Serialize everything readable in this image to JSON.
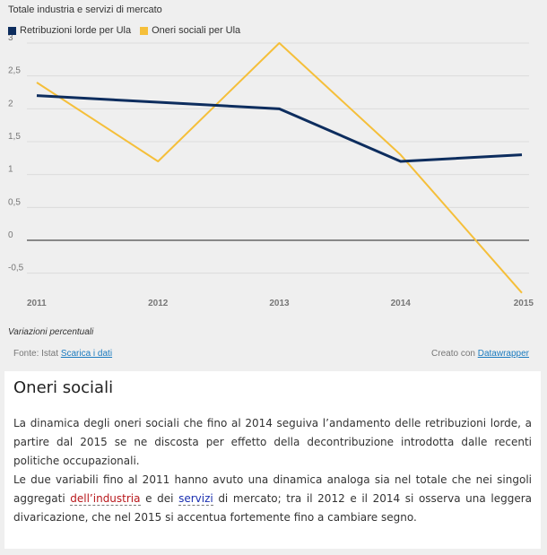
{
  "chart_data": {
    "type": "line",
    "title": "Totale industria e servizi di mercato",
    "categories": [
      "2011",
      "2012",
      "2013",
      "2014",
      "2015"
    ],
    "series": [
      {
        "name": "Retribuzioni lorde per Ula",
        "color": "#0d2d5e",
        "values": [
          2.2,
          2.1,
          2.0,
          1.2,
          1.3
        ]
      },
      {
        "name": "Oneri sociali per Ula",
        "color": "#f5bf3a",
        "values": [
          2.4,
          1.2,
          3.0,
          1.3,
          -0.8
        ]
      }
    ],
    "yticks": [
      "3",
      "2,5",
      "2",
      "1,5",
      "1",
      "0,5",
      "0",
      "-0,5"
    ],
    "ytick_values": [
      3,
      2.5,
      2,
      1.5,
      1,
      0.5,
      0,
      -0.5
    ],
    "ylim": [
      -0.8,
      3
    ],
    "grid": true,
    "legend": "top-left",
    "note": "Variazioni percentuali"
  },
  "footer": {
    "source_label": "Fonte: Istat",
    "download_link": "Scarica i dati",
    "credit_label": "Creato con",
    "credit_link": "Datawrapper"
  },
  "article": {
    "heading": "Oneri sociali",
    "p1": "La dinamica degli oneri sociali che fino al 2014 seguiva l’andamento delle retribuzioni lorde, a partire dal 2015 se ne discosta per effetto della decontribuzione introdotta dalle recenti politiche occupazionali.",
    "p2_a": "Le due variabili fino al 2011 hanno avuto una dinamica analoga sia nel totale che nei singoli aggregati ",
    "p2_kw1": "dell’industria",
    "p2_b": " e dei ",
    "p2_kw2": "servizi",
    "p2_c": " di mercato; tra il 2012 e il 2014 si osserva una leggera divaricazione, che nel 2015 si accentua fortemente fino a cambiare segno."
  }
}
